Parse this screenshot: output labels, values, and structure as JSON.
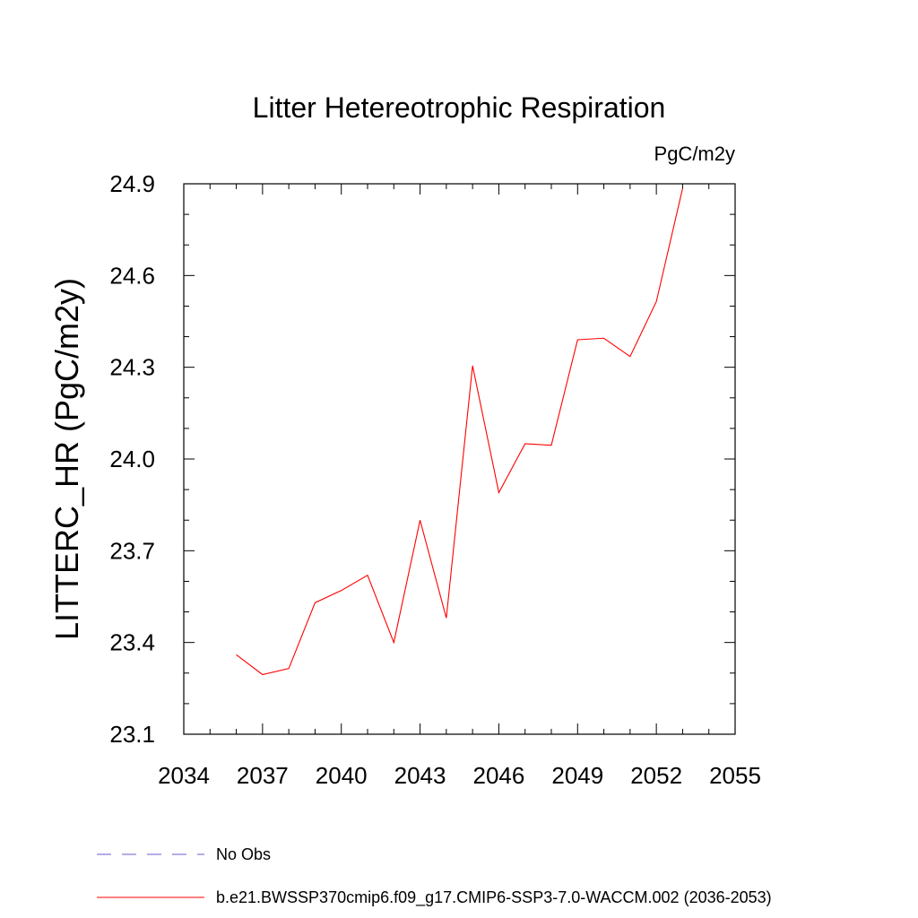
{
  "chart_data": {
    "type": "line",
    "title": "Litter Hetereotrophic Respiration",
    "units_label": "PgC/m2y",
    "ylabel": "LITTERC_HR  (PgC/m2y)",
    "xlabel": "",
    "xlim": [
      2034,
      2055
    ],
    "ylim": [
      23.1,
      24.9
    ],
    "x_ticks": [
      2034,
      2037,
      2040,
      2043,
      2046,
      2049,
      2052,
      2055
    ],
    "x_tick_labels": [
      "2034",
      "2037",
      "2040",
      "2043",
      "2046",
      "2049",
      "2052",
      "2055"
    ],
    "y_ticks": [
      23.1,
      23.4,
      23.7,
      24.0,
      24.3,
      24.6,
      24.9
    ],
    "y_tick_labels": [
      "23.1",
      "23.4",
      "23.7",
      "24.0",
      "24.3",
      "24.6",
      "24.9"
    ],
    "grid": false,
    "legend_position": "bottom",
    "series": [
      {
        "name": "b.e21.BWSSP370cmip6.f09_g17.CMIP6-SSP3-7.0-WACCM.002 (2036-2053)",
        "color": "#ff0000",
        "style": "solid",
        "x": [
          2036,
          2037,
          2038,
          2039,
          2040,
          2041,
          2042,
          2043,
          2044,
          2045,
          2046,
          2047,
          2048,
          2049,
          2050,
          2051,
          2052,
          2053
        ],
        "y": [
          23.36,
          23.295,
          23.315,
          23.53,
          23.57,
          23.62,
          23.4,
          23.8,
          23.48,
          24.305,
          23.89,
          24.05,
          24.045,
          24.39,
          24.395,
          24.335,
          24.515,
          24.885
        ]
      }
    ],
    "legend": [
      {
        "label": "No Obs",
        "color": "#6a5acd",
        "style": "dashed"
      },
      {
        "label": "b.e21.BWSSP370cmip6.f09_g17.CMIP6-SSP3-7.0-WACCM.002 (2036-2053)",
        "color": "#ff0000",
        "style": "solid"
      }
    ]
  }
}
